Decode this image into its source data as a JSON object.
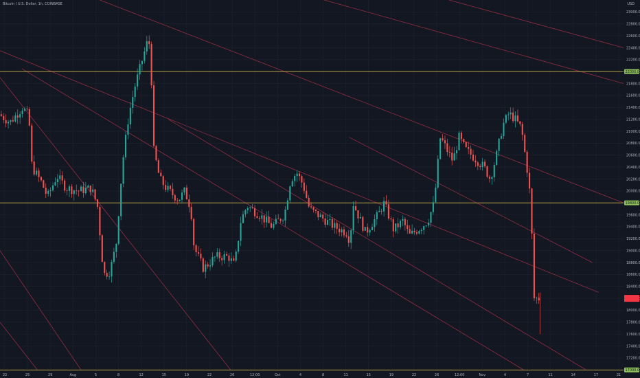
{
  "header": {
    "symbol_text": "Bitcoin / U.S. Dollar, 1h, COINBASE"
  },
  "currency": "USD",
  "colors": {
    "background": "#131722",
    "grid": "#1e222d",
    "up": "#26a69a",
    "down": "#ef5350",
    "channel": "#a8304a",
    "level": "#c8b44a",
    "level_label": "#8fbf5a",
    "price_label": "#f23645",
    "axis_text": "#b2b5be"
  },
  "chart_data": {
    "type": "candlestick",
    "title": "",
    "x_tick_labels": [
      "22",
      "25",
      "29",
      "Aug",
      "5",
      "8",
      "12",
      "15",
      "19",
      "22",
      "26",
      "12:00",
      "Oct",
      "4",
      "8",
      "11",
      "15",
      "19",
      "22",
      "26",
      "12:00",
      "Nov",
      "4",
      "7",
      "11",
      "14",
      "17",
      "21"
    ],
    "y_tick_labels": [
      "23000.00",
      "22800.00",
      "22600.00",
      "22400.00",
      "22200.00",
      "22000.00",
      "21800.00",
      "21600.00",
      "21400.00",
      "21200.00",
      "21000.00",
      "20800.00",
      "20600.00",
      "20400.00",
      "20200.00",
      "20000.00",
      "19800.00",
      "19600.00",
      "19400.00",
      "19200.00",
      "19000.00",
      "18800.00",
      "18600.00",
      "18400.00",
      "18200.00",
      "18000.00",
      "17800.00",
      "17600.00",
      "17400.00",
      "17200.00",
      "17000.00"
    ],
    "ylim": [
      16980,
      23200
    ],
    "horizontal_levels": [
      {
        "price": 22000,
        "label": "22000.00"
      },
      {
        "price": 19800,
        "label": "19800.00"
      },
      {
        "price": 17000,
        "label": "17000.00"
      }
    ],
    "current_price": {
      "price": 18200,
      "label": ""
    },
    "channel_lines": [
      {
        "from": [
          0,
          21900
        ],
        "to": [
          0.37,
          17000
        ]
      },
      {
        "from": [
          0,
          19000
        ],
        "to": [
          0.13,
          17000
        ]
      },
      {
        "from": [
          0.16,
          23200
        ],
        "to": [
          1,
          19800
        ]
      },
      {
        "from": [
          0.035,
          22050
        ],
        "to": [
          0.84,
          17000
        ]
      },
      {
        "from": [
          0.0,
          22350
        ],
        "to": [
          0.96,
          18300
        ]
      },
      {
        "from": [
          0.27,
          21200
        ],
        "to": [
          0.94,
          17000
        ]
      },
      {
        "from": [
          0.52,
          23200
        ],
        "to": [
          1,
          21800
        ]
      },
      {
        "from": [
          0.72,
          23200
        ],
        "to": [
          1,
          22400
        ]
      },
      {
        "from": [
          0.56,
          20900
        ],
        "to": [
          0.95,
          18800
        ]
      },
      {
        "from": [
          0.0,
          17800
        ],
        "to": [
          0.06,
          17000
        ]
      }
    ],
    "anchors": [
      [
        0,
        21300
      ],
      [
        0.02,
        21150
      ],
      [
        0.04,
        21400
      ],
      [
        0.05,
        21250
      ],
      [
        0.055,
        20400
      ],
      [
        0.07,
        20150
      ],
      [
        0.08,
        19900
      ],
      [
        0.095,
        20250
      ],
      [
        0.11,
        20050
      ],
      [
        0.13,
        20000
      ],
      [
        0.15,
        20050
      ],
      [
        0.16,
        19750
      ],
      [
        0.17,
        18600
      ],
      [
        0.18,
        18650
      ],
      [
        0.19,
        19100
      ],
      [
        0.2,
        20450
      ],
      [
        0.21,
        21250
      ],
      [
        0.22,
        21750
      ],
      [
        0.24,
        22500
      ],
      [
        0.245,
        22450
      ],
      [
        0.25,
        20700
      ],
      [
        0.26,
        20200
      ],
      [
        0.27,
        20050
      ],
      [
        0.29,
        19850
      ],
      [
        0.3,
        20000
      ],
      [
        0.31,
        19700
      ],
      [
        0.315,
        19050
      ],
      [
        0.33,
        18700
      ],
      [
        0.35,
        18900
      ],
      [
        0.37,
        18900
      ],
      [
        0.38,
        18750
      ],
      [
        0.39,
        19500
      ],
      [
        0.4,
        19750
      ],
      [
        0.42,
        19600
      ],
      [
        0.44,
        19400
      ],
      [
        0.46,
        19600
      ],
      [
        0.47,
        20200
      ],
      [
        0.48,
        20300
      ],
      [
        0.49,
        20100
      ],
      [
        0.5,
        19700
      ],
      [
        0.52,
        19550
      ],
      [
        0.54,
        19400
      ],
      [
        0.56,
        19300
      ],
      [
        0.565,
        19150
      ],
      [
        0.57,
        19800
      ],
      [
        0.59,
        19300
      ],
      [
        0.61,
        19600
      ],
      [
        0.62,
        19800
      ],
      [
        0.635,
        19350
      ],
      [
        0.65,
        19500
      ],
      [
        0.66,
        19250
      ],
      [
        0.68,
        19400
      ],
      [
        0.69,
        19500
      ],
      [
        0.7,
        19800
      ],
      [
        0.71,
        20900
      ],
      [
        0.72,
        20700
      ],
      [
        0.73,
        20500
      ],
      [
        0.74,
        20900
      ],
      [
        0.75,
        20700
      ],
      [
        0.77,
        20500
      ],
      [
        0.78,
        20400
      ],
      [
        0.79,
        20200
      ],
      [
        0.8,
        20600
      ],
      [
        0.81,
        21100
      ],
      [
        0.82,
        21300
      ],
      [
        0.83,
        21200
      ],
      [
        0.84,
        21050
      ],
      [
        0.85,
        20300
      ],
      [
        0.855,
        19800
      ],
      [
        0.86,
        18200
      ],
      [
        0.865,
        18200
      ]
    ]
  }
}
